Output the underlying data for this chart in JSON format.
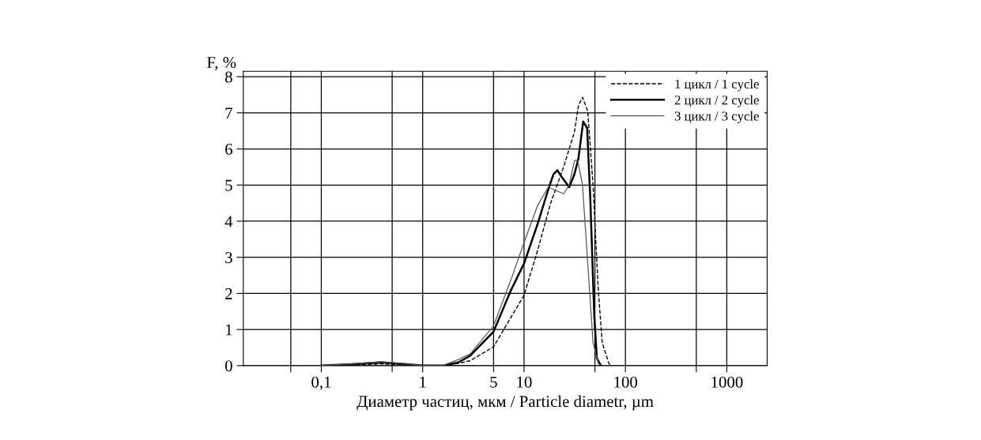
{
  "chart_data": {
    "type": "line",
    "ylabel": "F, %",
    "xlabel": "Диаметр частиц, мкм / Particle diametr, µm",
    "log": "x",
    "xlim": [
      0.017,
      2500
    ],
    "ylim": [
      0,
      8.15
    ],
    "xticks": [
      {
        "value": 0.05,
        "label": null
      },
      {
        "value": 0.1,
        "label": "0,1"
      },
      {
        "value": 0.5,
        "label": null
      },
      1,
      5,
      10,
      {
        "value": 50,
        "label": null
      },
      100,
      {
        "value": 500,
        "label": null
      },
      1000
    ],
    "yticks": [
      0,
      1,
      2,
      3,
      4,
      5,
      6,
      7,
      8
    ],
    "grid": true,
    "legend": "top right",
    "series": [
      {
        "name": "1 цикл / 1 cycle",
        "color": "#000000",
        "line_style": "dashed",
        "x": [
          0.1,
          0.2,
          0.39,
          0.7,
          1.0,
          1.57,
          2.25,
          2.95,
          5,
          10,
          13.6,
          18.3,
          24.7,
          31.4,
          34.4,
          37.7,
          42.5,
          47.9,
          54,
          59,
          68.6,
          72
        ],
        "values": [
          0,
          0.02,
          0.05,
          0.02,
          0,
          0,
          0.06,
          0.14,
          0.52,
          1.95,
          3.19,
          4.5,
          5.52,
          6.47,
          7.2,
          7.43,
          7.05,
          5.0,
          2.1,
          0.64,
          0.06,
          0
        ]
      },
      {
        "name": "2 цикл / 2 cycle",
        "color": "#000000",
        "line_style": "solid",
        "x": [
          0.1,
          0.2,
          0.39,
          0.7,
          1.0,
          1.57,
          2.25,
          2.95,
          5,
          7.46,
          10,
          13.6,
          17.3,
          19.5,
          21.3,
          24,
          27.9,
          31.4,
          34.4,
          38.3,
          41.9,
          45,
          49.3,
          52.3,
          57.3
        ],
        "values": [
          0,
          0.04,
          0.09,
          0.04,
          0,
          0,
          0.09,
          0.28,
          0.94,
          2.1,
          2.83,
          3.92,
          4.87,
          5.3,
          5.41,
          5.19,
          4.94,
          5.3,
          5.74,
          6.76,
          6.58,
          4.65,
          1.37,
          0.2,
          0
        ]
      },
      {
        "name": "3 цикл / 3 cycle",
        "color": "#555555",
        "line_style": "solid",
        "x": [
          0.1,
          0.2,
          0.39,
          0.7,
          1.0,
          1.57,
          2.25,
          2.95,
          5,
          7.46,
          10,
          13.6,
          17.3,
          21.3,
          24.7,
          27.9,
          31.4,
          33.7,
          37.7,
          42.5,
          47.9,
          54
        ],
        "values": [
          0,
          0.05,
          0.11,
          0.05,
          0,
          0,
          0.17,
          0.33,
          1.1,
          2.39,
          3.41,
          4.43,
          4.94,
          4.83,
          4.76,
          5.01,
          5.67,
          5.7,
          5.01,
          2.83,
          0.64,
          0.06
        ]
      }
    ]
  }
}
